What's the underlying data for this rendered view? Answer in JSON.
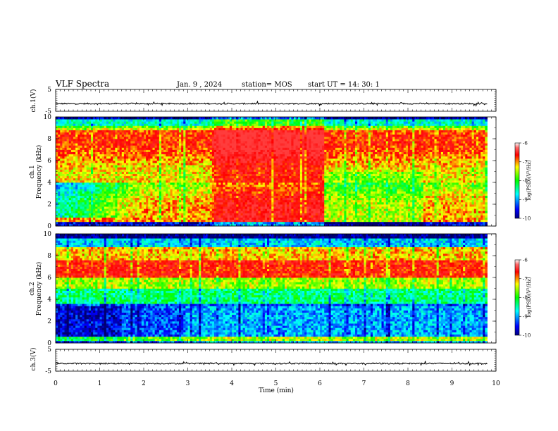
{
  "header": {
    "title": "VLF Spectra",
    "date": "Jan. 9 , 2024",
    "station": "station= MOS",
    "start": "start UT = 14: 30: 1"
  },
  "chart_data": [
    {
      "type": "line",
      "name": "ch1-waveform",
      "ylabel": "ch.1(V)",
      "ylim": [
        -5,
        5
      ],
      "yticks": [
        "5",
        "-5"
      ],
      "xlim": [
        0,
        10
      ],
      "level": -1.5
    },
    {
      "type": "heatmap",
      "name": "ch1-spectrogram",
      "ylabel_top": "ch.1",
      "ylabel": "Frequency (kHz)",
      "ylim": [
        0,
        10
      ],
      "yticks": [
        "0",
        "2",
        "4",
        "6",
        "8",
        "10"
      ],
      "xlim": [
        0,
        10
      ],
      "data_extent_minutes": 9.8,
      "colorbar": {
        "label": "log(PSD)(V²/Hz)",
        "ticks": [
          "-6",
          "-7",
          "-8",
          "-9",
          "-10"
        ],
        "range": [
          -10,
          -6
        ]
      }
    },
    {
      "type": "heatmap",
      "name": "ch2-spectrogram",
      "ylabel_top": "ch.2",
      "ylabel": "Frequency (kHz)",
      "ylim": [
        0,
        10
      ],
      "yticks": [
        "0",
        "2",
        "4",
        "6",
        "8",
        "10"
      ],
      "xlim": [
        0,
        10
      ],
      "data_extent_minutes": 9.8,
      "colorbar": {
        "label": "log(PSD)(V²/Hz)",
        "ticks": [
          "-6",
          "-7",
          "-8",
          "-9",
          "-10"
        ],
        "range": [
          -10,
          -6
        ]
      }
    },
    {
      "type": "line",
      "name": "ch3-waveform",
      "ylabel": "ch.3(V)",
      "ylim": [
        -5,
        5
      ],
      "yticks": [
        "5",
        "-5"
      ],
      "xlim": [
        0,
        10
      ],
      "level": -1.5
    }
  ],
  "xaxis": {
    "label": "Time (min)",
    "ticks": [
      "0",
      "1",
      "2",
      "3",
      "4",
      "5",
      "6",
      "7",
      "8",
      "9",
      "10"
    ],
    "range": [
      0,
      10
    ]
  },
  "colors": {
    "colormap": [
      "#00007f",
      "#0000ff",
      "#00ffff",
      "#00ff00",
      "#ffff00",
      "#ff0000",
      "#ff0000"
    ]
  }
}
